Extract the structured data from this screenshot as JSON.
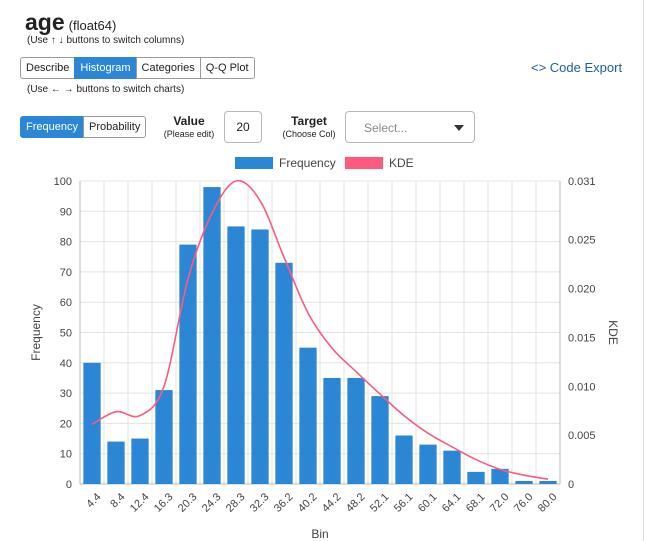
{
  "header": {
    "column_name": "age",
    "dtype": "(float64)",
    "hint_columns": "(Use ↑ ↓ buttons to switch columns)",
    "hint_charts": "(Use ← → buttons to switch charts)"
  },
  "tabs": [
    {
      "label": "Describe",
      "active": false
    },
    {
      "label": "Histogram",
      "active": true
    },
    {
      "label": "Categories",
      "active": false
    },
    {
      "label": "Q-Q Plot",
      "active": false
    }
  ],
  "code_export": {
    "icon": "code-brackets-icon",
    "label": "<> Code Export"
  },
  "mode_toggle": [
    {
      "label": "Frequency",
      "active": true
    },
    {
      "label": "Probability",
      "active": false
    }
  ],
  "controls": {
    "value_label": "Value",
    "value_sublabel": "(Please edit)",
    "value": "20",
    "target_label": "Target",
    "target_sublabel": "(Choose Col)",
    "target_placeholder": "Select..."
  },
  "colors": {
    "accent": "#2b86d6",
    "bar": "#2b86d6",
    "kde": "#ff5a7e",
    "link": "#1c5fa8"
  },
  "chart_data": {
    "type": "bar",
    "xlabel": "Bin",
    "ylabel": "Frequency",
    "y2label": "KDE",
    "legend": [
      "Frequency",
      "KDE"
    ],
    "legend_position": "top",
    "grid": true,
    "ylim": [
      0,
      100
    ],
    "yticks": [
      "0",
      "10",
      "20",
      "30",
      "40",
      "50",
      "60",
      "70",
      "80",
      "90",
      "100"
    ],
    "y2lim": [
      0,
      0.031
    ],
    "y2ticks": [
      "0",
      "0.005",
      "0.010",
      "0.015",
      "0.020",
      "0.025",
      "0.031"
    ],
    "categories": [
      "4.4",
      "8.4",
      "12.4",
      "16.3",
      "20.3",
      "24.3",
      "28.3",
      "32.3",
      "36.2",
      "40.2",
      "44.2",
      "48.2",
      "52.1",
      "56.1",
      "60.1",
      "64.1",
      "68.1",
      "72.0",
      "76.0",
      "80.0"
    ],
    "values": [
      40,
      14,
      15,
      31,
      79,
      98,
      85,
      84,
      73,
      45,
      35,
      35,
      29,
      16,
      13,
      11,
      4,
      5,
      1,
      1
    ],
    "kde": [
      0.0061,
      0.0074,
      0.007,
      0.01,
      0.021,
      0.0277,
      0.031,
      0.029,
      0.0232,
      0.0175,
      0.0139,
      0.0115,
      0.0092,
      0.007,
      0.0052,
      0.0038,
      0.0025,
      0.0015,
      0.0009,
      0.0005
    ]
  }
}
